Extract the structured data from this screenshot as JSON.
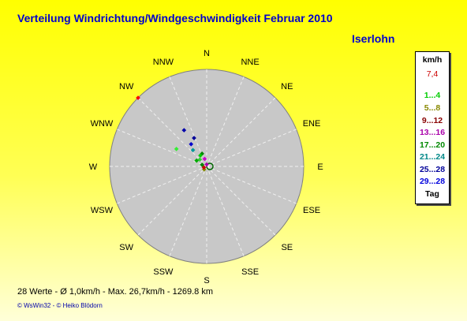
{
  "title": "Verteilung Windrichtung/Windgeschwindigkeit  Februar 2010",
  "location": "Iserlohn",
  "legend": {
    "header": "km/h",
    "value": "7,4",
    "items": [
      {
        "label": "1...4",
        "color": "#00cc00"
      },
      {
        "label": "5...8",
        "color": "#888800"
      },
      {
        "label": "9...12",
        "color": "#880000"
      },
      {
        "label": "13...16",
        "color": "#aa00aa"
      },
      {
        "label": "17...20",
        "color": "#008800"
      },
      {
        "label": "21...24",
        "color": "#008888"
      },
      {
        "label": "25...28",
        "color": "#000099"
      },
      {
        "label": "29...28",
        "color": "#0000dd"
      }
    ],
    "footer": "Tag"
  },
  "stats": "28 Werte   -   Ø 1,0km/h  -  Max. 26,7km/h   -   1269.8 km",
  "credits": "© WsWin32  -  © Heiko Blödorn",
  "chart_data": {
    "type": "scatter",
    "directions": [
      "N",
      "NNE",
      "NE",
      "ENE",
      "E",
      "ESE",
      "SE",
      "SSE",
      "S",
      "SSW",
      "SW",
      "WSW",
      "W",
      "WNW",
      "NW",
      "NNW"
    ],
    "colors": {
      "ring": "#808080",
      "spoke": "#f0f0f0",
      "disc": "#c8c8c8"
    },
    "points": [
      {
        "angle": 315,
        "r": 1.0,
        "color": "#ff0000"
      },
      {
        "angle": 328,
        "r": 0.44,
        "color": "#0000aa"
      },
      {
        "angle": 336,
        "r": 0.32,
        "color": "#000099"
      },
      {
        "angle": 300,
        "r": 0.36,
        "color": "#33ee33"
      },
      {
        "angle": 325,
        "r": 0.28,
        "color": "#0000cc"
      },
      {
        "angle": 320,
        "r": 0.22,
        "color": "#009999"
      },
      {
        "angle": 340,
        "r": 0.14,
        "color": "#008800"
      },
      {
        "angle": 330,
        "r": 0.13,
        "color": "#00cc00"
      },
      {
        "angle": 315,
        "r": 0.1,
        "color": "#33cc33"
      },
      {
        "angle": 300,
        "r": 0.12,
        "color": "#00aa00"
      },
      {
        "angle": 345,
        "r": 0.08,
        "color": "#cc00cc"
      },
      {
        "angle": 220,
        "r": 0.04,
        "color": "#888800"
      },
      {
        "angle": 250,
        "r": 0.03,
        "color": "#cc0000"
      },
      {
        "angle": 290,
        "r": 0.05,
        "color": "#008800"
      },
      {
        "angle": 0,
        "r": 0.02,
        "color": "#aa00aa"
      }
    ]
  }
}
